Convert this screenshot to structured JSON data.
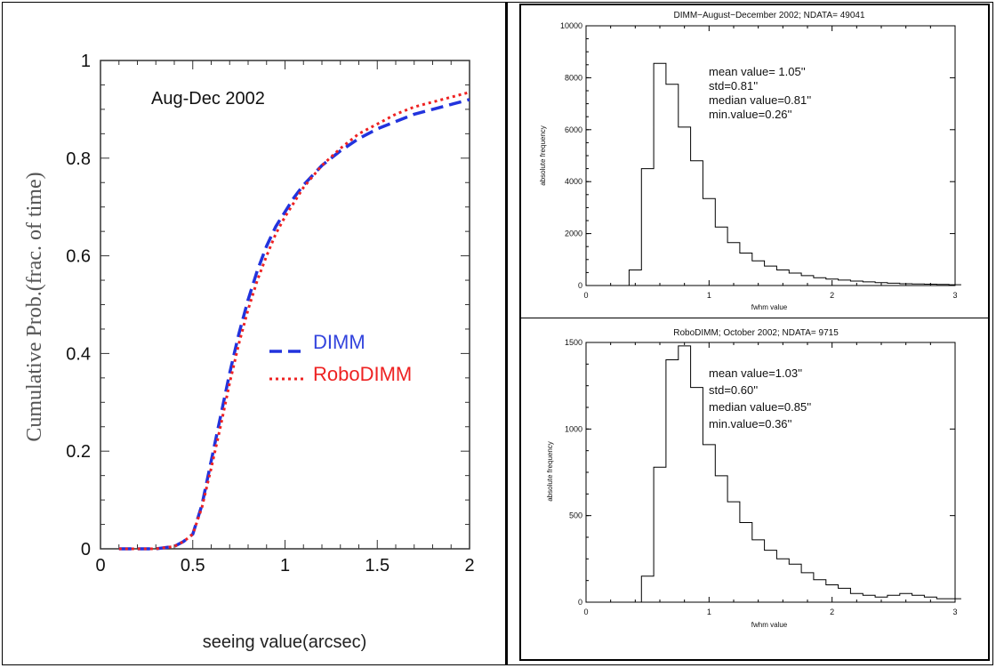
{
  "chart_data": [
    {
      "type": "line",
      "title": "Aug-Dec 2002",
      "xlabel": "seeing value(arcsec)",
      "ylabel": "Cumulative Prob.(frac. of time)",
      "xlim": [
        0,
        2
      ],
      "ylim": [
        0,
        1
      ],
      "x_ticks": [
        "0",
        "0.5",
        "1",
        "1.5",
        "2"
      ],
      "y_ticks": [
        "0",
        "0.2",
        "0.4",
        "0.6",
        "0.8",
        "1"
      ],
      "legend_position": "center-right",
      "grid": false,
      "series": [
        {
          "name": "DIMM",
          "color": "#2233dd",
          "style": "dashed",
          "x": [
            0.1,
            0.2,
            0.3,
            0.4,
            0.45,
            0.5,
            0.55,
            0.6,
            0.65,
            0.7,
            0.75,
            0.8,
            0.85,
            0.9,
            0.95,
            1.0,
            1.05,
            1.1,
            1.2,
            1.3,
            1.4,
            1.5,
            1.6,
            1.7,
            1.8,
            1.9,
            2.0
          ],
          "y": [
            0.0,
            0.0,
            0.0,
            0.005,
            0.015,
            0.03,
            0.09,
            0.18,
            0.27,
            0.36,
            0.44,
            0.51,
            0.57,
            0.62,
            0.66,
            0.69,
            0.72,
            0.745,
            0.785,
            0.815,
            0.84,
            0.86,
            0.875,
            0.89,
            0.9,
            0.91,
            0.92
          ]
        },
        {
          "name": "RoboDIMM",
          "color": "#ee2222",
          "style": "dotted",
          "x": [
            0.1,
            0.2,
            0.3,
            0.4,
            0.45,
            0.5,
            0.55,
            0.6,
            0.65,
            0.7,
            0.75,
            0.8,
            0.85,
            0.9,
            0.95,
            1.0,
            1.05,
            1.1,
            1.2,
            1.3,
            1.4,
            1.5,
            1.6,
            1.7,
            1.8,
            1.9,
            2.0
          ],
          "y": [
            0.0,
            0.0,
            0.0,
            0.005,
            0.015,
            0.03,
            0.085,
            0.165,
            0.25,
            0.34,
            0.42,
            0.49,
            0.55,
            0.6,
            0.645,
            0.68,
            0.71,
            0.74,
            0.785,
            0.82,
            0.85,
            0.87,
            0.89,
            0.905,
            0.915,
            0.925,
            0.935
          ]
        }
      ]
    },
    {
      "type": "bar",
      "title": "DIMM−August−December 2002;  NDATA=       49041",
      "xlabel": "fwhm value",
      "ylabel": "absolute frequency",
      "xlim": [
        0,
        3
      ],
      "ylim": [
        0,
        10000
      ],
      "x_ticks": [
        "0",
        "1",
        "2",
        "3"
      ],
      "y_ticks": [
        "0",
        "2000",
        "4000",
        "6000",
        "8000",
        "10000"
      ],
      "bin_width": 0.1,
      "bin_start": [
        0.35,
        0.45,
        0.55,
        0.65,
        0.75,
        0.85,
        0.95,
        1.05,
        1.15,
        1.25,
        1.35,
        1.45,
        1.55,
        1.65,
        1.75,
        1.85,
        1.95,
        2.05,
        2.15,
        2.25,
        2.35,
        2.45,
        2.55,
        2.65,
        2.75,
        2.85,
        2.95
      ],
      "values": [
        600,
        4500,
        8550,
        7750,
        6100,
        4800,
        3350,
        2250,
        1650,
        1250,
        950,
        750,
        600,
        480,
        380,
        300,
        250,
        210,
        170,
        140,
        110,
        90,
        70,
        60,
        50,
        40,
        30
      ],
      "annotations": [
        "mean value= 1.05''",
        "std=0.81''",
        "median value=0.81''",
        "min.value=0.26''"
      ]
    },
    {
      "type": "bar",
      "title": "RoboDIMM; October 2002;  NDATA=        9715",
      "xlabel": "fwhm value",
      "ylabel": "absolute frequency",
      "xlim": [
        0,
        3
      ],
      "ylim": [
        0,
        1500
      ],
      "x_ticks": [
        "0",
        "1",
        "2",
        "3"
      ],
      "y_ticks": [
        "0",
        "500",
        "1000",
        "1500"
      ],
      "bin_width": 0.1,
      "bin_start": [
        0.45,
        0.55,
        0.65,
        0.75,
        0.85,
        0.95,
        1.05,
        1.15,
        1.25,
        1.35,
        1.45,
        1.55,
        1.65,
        1.75,
        1.85,
        1.95,
        2.05,
        2.15,
        2.25,
        2.35,
        2.45,
        2.55,
        2.65,
        2.75,
        2.85,
        2.95
      ],
      "values": [
        150,
        780,
        1400,
        1480,
        1240,
        910,
        730,
        580,
        460,
        360,
        300,
        250,
        220,
        170,
        130,
        100,
        80,
        50,
        40,
        30,
        40,
        50,
        40,
        30,
        20,
        20
      ],
      "annotations": [
        "mean value=1.03''",
        "std=0.60''",
        "median value=0.85''",
        "min.value=0.36''"
      ]
    }
  ]
}
